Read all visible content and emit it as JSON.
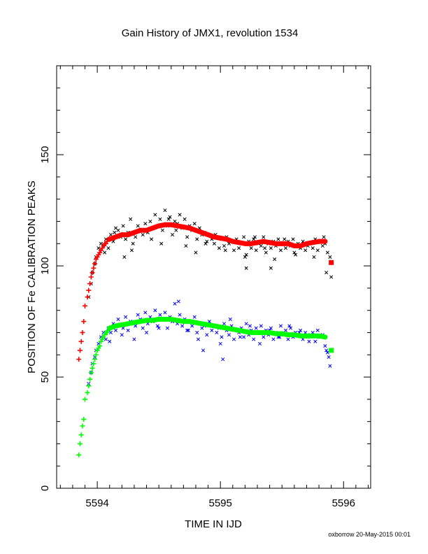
{
  "chart_data": {
    "type": "scatter",
    "title": "Gain History of JMX1, revolution 1534",
    "xlabel": "TIME IN IJD",
    "ylabel": "POSITION OF Fe CALIBRATION PEAKS",
    "xlim": [
      5593.67,
      5596.22
    ],
    "ylim": [
      0,
      190
    ],
    "x_ticks": [
      5594,
      5595,
      5596
    ],
    "x_tick_labels": [
      "5594",
      "5595",
      "5596"
    ],
    "y_ticks": [
      0,
      50,
      100,
      150
    ],
    "y_tick_labels": [
      "0",
      "50",
      "100",
      "150"
    ],
    "footer": "oxborrow 20-May-2015 00:01",
    "series": [
      {
        "marker": "x",
        "color": "#000000",
        "x": [
          5593.93,
          5593.95,
          5593.96,
          5593.98,
          5593.99,
          5594.01,
          5594.03,
          5594.05,
          5594.07,
          5594.09,
          5594.11,
          5594.13,
          5594.15,
          5594.17,
          5594.19,
          5594.21,
          5594.23,
          5594.25,
          5594.27,
          5594.29,
          5594.31,
          5594.33,
          5594.35,
          5594.37,
          5594.39,
          5594.41,
          5594.43,
          5594.45,
          5594.47,
          5594.49,
          5594.51,
          5594.53,
          5594.55,
          5594.57,
          5594.59,
          5594.61,
          5594.63,
          5594.65,
          5594.67,
          5594.69,
          5594.71,
          5594.73,
          5594.75,
          5594.77,
          5594.79,
          5594.81,
          5594.83,
          5594.85,
          5594.87,
          5594.89,
          5594.91,
          5594.93,
          5594.95,
          5594.97,
          5594.99,
          5595.01,
          5595.03,
          5595.05,
          5595.07,
          5595.09,
          5595.11,
          5595.13,
          5595.15,
          5595.17,
          5595.19,
          5595.21,
          5595.23,
          5595.25,
          5595.27,
          5595.29,
          5595.31,
          5595.33,
          5595.35,
          5595.37,
          5595.39,
          5595.41,
          5595.43,
          5595.45,
          5595.47,
          5595.49,
          5595.51,
          5595.53,
          5595.55,
          5595.57,
          5595.59,
          5595.61,
          5595.63,
          5595.65,
          5595.67,
          5595.69,
          5595.71,
          5595.73,
          5595.75,
          5595.77,
          5595.79,
          5595.81,
          5595.83,
          5595.85,
          5595.87,
          5595.89,
          5594.06,
          5594.14,
          5594.22,
          5594.28,
          5594.36,
          5594.44,
          5594.52,
          5594.58,
          5594.64,
          5594.72,
          5594.8,
          5594.88,
          5594.96,
          5595.04,
          5595.12,
          5595.2,
          5595.28,
          5595.36,
          5595.44,
          5595.52,
          5595.6,
          5595.68,
          5595.76,
          5595.84,
          5595.21,
          5595.41,
          5595.86,
          5595.9
        ],
        "y": [
          86,
          92,
          97,
          101,
          104,
          108,
          110,
          109,
          112,
          108,
          114,
          111,
          117,
          116,
          113,
          118,
          112,
          115,
          121,
          110,
          113,
          118,
          116,
          114,
          119,
          115,
          120,
          117,
          123,
          118,
          121,
          116,
          125,
          118,
          122,
          114,
          120,
          119,
          123,
          117,
          121,
          113,
          118,
          116,
          119,
          112,
          117,
          114,
          115,
          111,
          114,
          112,
          110,
          113,
          108,
          112,
          109,
          113,
          110,
          111,
          107,
          112,
          108,
          110,
          113,
          105,
          111,
          108,
          112,
          107,
          110,
          109,
          113,
          106,
          110,
          108,
          111,
          109,
          112,
          107,
          110,
          108,
          111,
          109,
          112,
          105,
          110,
          108,
          111,
          107,
          109,
          110,
          108,
          112,
          107,
          111,
          109,
          110,
          106,
          104,
          106,
          115,
          104,
          107,
          116,
          112,
          110,
          121,
          116,
          109,
          106,
          110,
          114,
          107,
          111,
          104,
          113,
          108,
          103,
          112,
          106,
          110,
          104,
          113,
          99,
          99,
          97,
          95
        ]
      },
      {
        "marker": "plus",
        "color": "#ff0000",
        "x": [
          5593.85,
          5593.86,
          5593.87,
          5593.88,
          5593.89,
          5593.9,
          5593.92,
          5593.93,
          5593.94,
          5593.95,
          5593.96,
          5593.97,
          5593.98,
          5593.99,
          5594.0,
          5594.01,
          5594.02,
          5594.03,
          5594.04,
          5594.05,
          5594.06,
          5594.07,
          5594.08,
          5594.09,
          5594.1
        ],
        "y": [
          58,
          62,
          66,
          70,
          75,
          82,
          86,
          89,
          92,
          95,
          97,
          99,
          101,
          103,
          104,
          105,
          106,
          107,
          108,
          109,
          110,
          110,
          111,
          112,
          112
        ]
      },
      {
        "line": true,
        "marker": "dot",
        "color": "#ff0000",
        "x": [
          5594.1,
          5594.15,
          5594.2,
          5594.25,
          5594.3,
          5594.35,
          5594.4,
          5594.45,
          5594.5,
          5594.55,
          5594.6,
          5594.65,
          5594.7,
          5594.75,
          5594.8,
          5594.85,
          5594.9,
          5594.95,
          5595.0,
          5595.05,
          5595.1,
          5595.15,
          5595.2,
          5595.25,
          5595.3,
          5595.35,
          5595.4,
          5595.45,
          5595.5,
          5595.55,
          5595.6,
          5595.65,
          5595.7,
          5595.75,
          5595.8,
          5595.85
        ],
        "y": [
          112,
          113,
          114,
          114,
          115,
          116,
          116,
          117,
          118,
          118.5,
          118.5,
          118,
          117.5,
          117,
          116,
          115,
          114,
          113,
          112.5,
          112,
          111,
          110.5,
          110,
          110,
          110.5,
          111,
          110.5,
          110,
          110,
          110,
          109,
          109,
          110,
          110.5,
          111,
          111
        ]
      },
      {
        "marker": "square",
        "color": "#ff0000",
        "x": [
          5595.9
        ],
        "y": [
          101.5
        ]
      },
      {
        "marker": "x",
        "color": "#0000ff",
        "x": [
          5593.93,
          5593.95,
          5593.96,
          5593.98,
          5593.99,
          5594.01,
          5594.03,
          5594.05,
          5594.07,
          5594.09,
          5594.11,
          5594.13,
          5594.15,
          5594.17,
          5594.19,
          5594.21,
          5594.23,
          5594.25,
          5594.27,
          5594.29,
          5594.31,
          5594.33,
          5594.35,
          5594.37,
          5594.39,
          5594.41,
          5594.43,
          5594.45,
          5594.47,
          5594.49,
          5594.51,
          5594.53,
          5594.55,
          5594.57,
          5594.59,
          5594.61,
          5594.63,
          5594.65,
          5594.67,
          5594.69,
          5594.71,
          5594.73,
          5594.75,
          5594.77,
          5594.79,
          5594.81,
          5594.83,
          5594.85,
          5594.87,
          5594.89,
          5594.91,
          5594.93,
          5594.95,
          5594.97,
          5594.99,
          5595.01,
          5595.03,
          5595.05,
          5595.07,
          5595.09,
          5595.11,
          5595.13,
          5595.15,
          5595.17,
          5595.19,
          5595.21,
          5595.23,
          5595.25,
          5595.27,
          5595.29,
          5595.31,
          5595.33,
          5595.35,
          5595.37,
          5595.39,
          5595.41,
          5595.43,
          5595.45,
          5595.47,
          5595.49,
          5595.51,
          5595.53,
          5595.55,
          5595.57,
          5595.59,
          5595.61,
          5595.63,
          5595.65,
          5595.67,
          5595.69,
          5595.71,
          5595.73,
          5595.75,
          5595.77,
          5595.79,
          5595.81,
          5595.83,
          5595.85,
          5595.87,
          5595.89,
          5594.1,
          5594.2,
          5594.3,
          5594.4,
          5594.5,
          5594.6,
          5594.66,
          5594.74,
          5594.82,
          5594.9,
          5595.0,
          5595.08,
          5595.16,
          5595.24,
          5595.32,
          5595.4,
          5595.48,
          5595.56,
          5595.64,
          5595.72,
          5595.8,
          5595.86,
          5594.86,
          5595.02,
          5595.88
        ],
        "y": [
          47,
          52,
          56,
          59,
          62,
          65,
          68,
          70,
          67,
          72,
          70,
          74,
          71,
          76,
          73,
          72,
          77,
          71,
          75,
          74,
          73,
          78,
          76,
          72,
          79,
          74,
          77,
          75,
          80,
          73,
          78,
          76,
          79,
          72,
          77,
          75,
          83,
          74,
          78,
          73,
          76,
          71,
          75,
          73,
          77,
          70,
          74,
          72,
          73,
          69,
          75,
          71,
          73,
          70,
          72,
          68,
          74,
          71,
          69,
          73,
          67,
          71,
          70,
          72,
          68,
          74,
          69,
          71,
          67,
          72,
          70,
          73,
          68,
          71,
          69,
          72,
          67,
          70,
          68,
          73,
          69,
          71,
          67,
          72,
          68,
          70,
          69,
          71,
          67,
          70,
          68,
          69,
          70,
          66,
          71,
          68,
          69,
          64,
          61,
          55,
          66,
          69,
          67,
          70,
          72,
          76,
          84,
          71,
          67,
          74,
          65,
          76,
          68,
          73,
          65,
          71,
          68,
          73,
          70,
          66,
          68,
          62,
          62,
          58,
          59
        ]
      },
      {
        "marker": "plus",
        "color": "#00ff00",
        "x": [
          5593.85,
          5593.86,
          5593.87,
          5593.88,
          5593.89,
          5593.9,
          5593.92,
          5593.93,
          5593.94,
          5593.95,
          5593.96,
          5593.97,
          5593.98,
          5593.99,
          5594.0,
          5594.01,
          5594.02,
          5594.03,
          5594.04,
          5594.05,
          5594.06,
          5594.07,
          5594.08,
          5594.09,
          5594.1
        ],
        "y": [
          15,
          20,
          24,
          28,
          31,
          40,
          43,
          46,
          49,
          52,
          54,
          56,
          58,
          60,
          62,
          63,
          64,
          66,
          67,
          68,
          69,
          70,
          70,
          71,
          72
        ]
      },
      {
        "line": true,
        "marker": "dot",
        "color": "#00ff00",
        "x": [
          5594.1,
          5594.15,
          5594.2,
          5594.25,
          5594.3,
          5594.35,
          5594.4,
          5594.45,
          5594.5,
          5594.55,
          5594.6,
          5594.65,
          5594.7,
          5594.75,
          5594.8,
          5594.85,
          5594.9,
          5594.95,
          5595.0,
          5595.05,
          5595.1,
          5595.15,
          5595.2,
          5595.25,
          5595.3,
          5595.35,
          5595.4,
          5595.45,
          5595.5,
          5595.55,
          5595.6,
          5595.65,
          5595.7,
          5595.75,
          5595.8,
          5595.85
        ],
        "y": [
          72,
          73,
          73.5,
          74,
          74.5,
          75,
          75.5,
          75.5,
          76,
          76,
          76,
          75.5,
          75,
          75,
          74.5,
          74,
          73.5,
          73,
          72.5,
          72,
          71.5,
          71,
          70.5,
          70,
          70,
          70,
          70,
          69.5,
          69.5,
          69,
          69,
          68.5,
          68.5,
          68.5,
          68.5,
          68
        ]
      },
      {
        "marker": "square",
        "color": "#00ff00",
        "x": [
          5595.9
        ],
        "y": [
          62
        ]
      }
    ]
  }
}
